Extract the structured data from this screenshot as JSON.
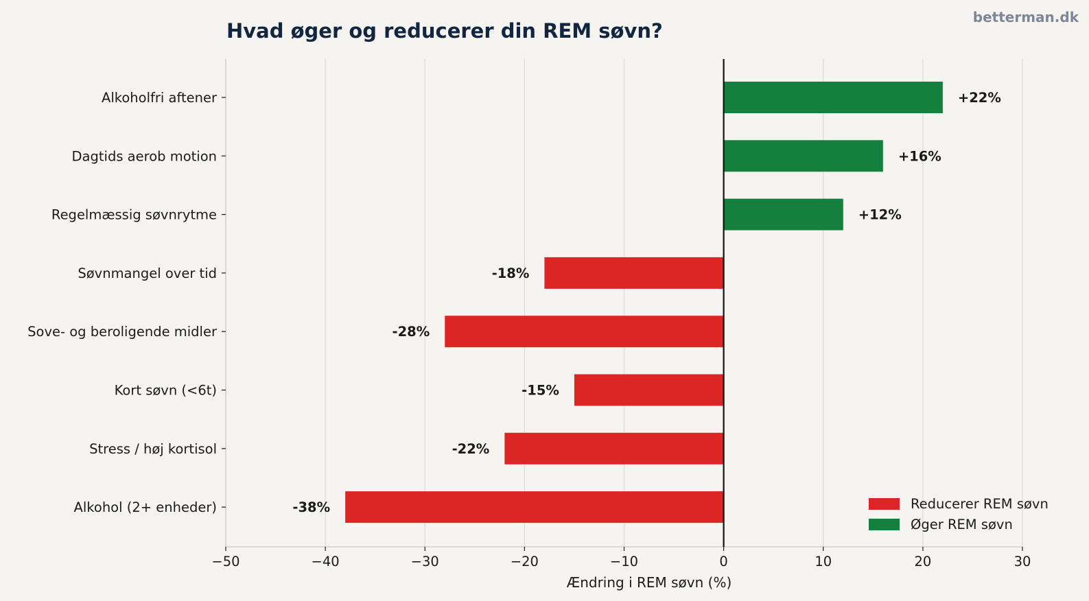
{
  "chart_data": {
    "type": "bar",
    "orientation": "horizontal",
    "title": "Hvad øger og reducerer din REM søvn?",
    "watermark": "betterman.dk",
    "xlabel": "Ændring i REM søvn (%)",
    "ylabel": "",
    "xlim": [
      -50,
      30
    ],
    "xticks": [
      -50,
      -40,
      -30,
      -20,
      -10,
      0,
      10,
      20,
      30
    ],
    "xtick_labels": [
      "−50",
      "−40",
      "−30",
      "−20",
      "−10",
      "0",
      "10",
      "20",
      "30"
    ],
    "grid": "vertical",
    "categories": [
      "Alkoholfri aftener",
      "Dagtids aerob motion",
      "Regelmæssig søvnrytme",
      "Søvnmangel over tid",
      "Sove- og beroligende midler",
      "Kort søvn (<6t)",
      "Stress / høj kortisol",
      "Alkohol (2+ enheder)"
    ],
    "values": [
      22,
      16,
      12,
      -18,
      -28,
      -15,
      -22,
      -38
    ],
    "value_labels": [
      "+22%",
      "+16%",
      "+12%",
      "-18%",
      "-28%",
      "-15%",
      "-22%",
      "-38%"
    ],
    "legend": {
      "position": "bottom-right",
      "entries": [
        {
          "label": "Reducerer REM søvn",
          "color": "#dc2626"
        },
        {
          "label": "Øger REM søvn",
          "color": "#15803d"
        }
      ]
    },
    "colors": {
      "positive": "#15803d",
      "negative": "#dc2626",
      "background": "#f5f4f1",
      "title": "#13263f",
      "watermark": "#7c8895",
      "grid": "#dddcd8",
      "zero_line": "#111111"
    }
  }
}
